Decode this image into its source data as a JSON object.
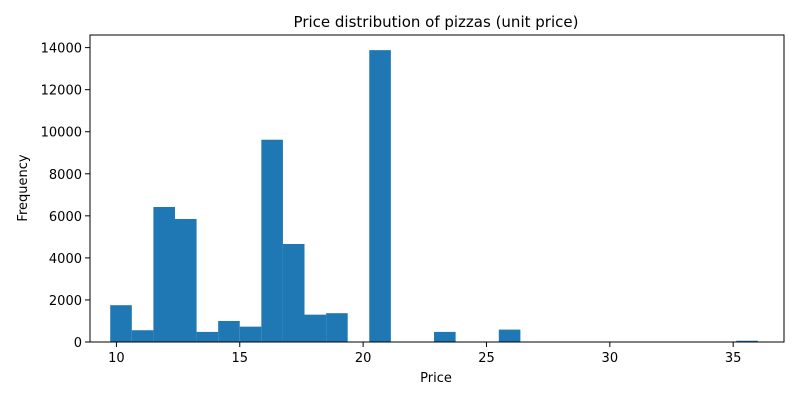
{
  "chart_data": {
    "type": "bar",
    "title": "Price distribution of pizzas (unit price)",
    "xlabel": "Price",
    "ylabel": "Frequency",
    "xlim": [
      8.93,
      37.06
    ],
    "ylim": [
      0,
      14600
    ],
    "xticks": [
      10,
      15,
      20,
      25,
      30,
      35
    ],
    "yticks": [
      0,
      2000,
      4000,
      6000,
      8000,
      10000,
      12000,
      14000
    ],
    "bar_color": "#1f77b4",
    "bins": [
      {
        "x0": 9.75,
        "x1": 10.625,
        "value": 1750
      },
      {
        "x0": 10.625,
        "x1": 11.5,
        "value": 560
      },
      {
        "x0": 11.5,
        "x1": 12.375,
        "value": 6420
      },
      {
        "x0": 12.375,
        "x1": 13.25,
        "value": 5850
      },
      {
        "x0": 13.25,
        "x1": 14.125,
        "value": 480
      },
      {
        "x0": 14.125,
        "x1": 15.0,
        "value": 1000
      },
      {
        "x0": 15.0,
        "x1": 15.875,
        "value": 730
      },
      {
        "x0": 15.875,
        "x1": 16.75,
        "value": 9620
      },
      {
        "x0": 16.75,
        "x1": 17.625,
        "value": 4660
      },
      {
        "x0": 17.625,
        "x1": 18.5,
        "value": 1300
      },
      {
        "x0": 18.5,
        "x1": 19.375,
        "value": 1370
      },
      {
        "x0": 20.25,
        "x1": 21.125,
        "value": 13880
      },
      {
        "x0": 22.875,
        "x1": 23.75,
        "value": 480
      },
      {
        "x0": 25.5,
        "x1": 26.375,
        "value": 590
      },
      {
        "x0": 35.125,
        "x1": 36.0,
        "value": 60
      }
    ]
  }
}
